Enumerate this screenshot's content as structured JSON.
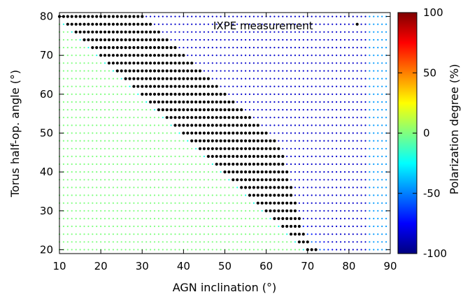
{
  "chart_data": {
    "type": "heatmap",
    "title": "",
    "xlabel": "AGN inclination (°)",
    "ylabel": "Torus half-op. angle (°)",
    "xlim": [
      10,
      90
    ],
    "ylim": [
      19,
      81
    ],
    "x_ticks": [
      "10",
      "20",
      "30",
      "40",
      "50",
      "60",
      "70",
      "80",
      "90"
    ],
    "y_ticks": [
      "20",
      "30",
      "40",
      "50",
      "60",
      "70",
      "80"
    ],
    "colorbar": {
      "label": "Polarization degree (%)",
      "range": [
        -100,
        100
      ],
      "ticks": [
        "100",
        "50",
        "0",
        "-50",
        "-100"
      ],
      "colormap": "jet"
    },
    "annotation": "IXPE measurement",
    "highlight_color": "#000000",
    "grid_x_start": 10,
    "grid_x_step": 1,
    "grid_y_start": 20,
    "grid_y_step": 2,
    "description_values": "Polarization degree is near 0% (green) for inclinations below the torus half-opening angle line, becoming strongly negative (blue, ~-80%) for higher inclinations; black points mark parameters consistent with the IXPE measurement along the boundary band."
  }
}
